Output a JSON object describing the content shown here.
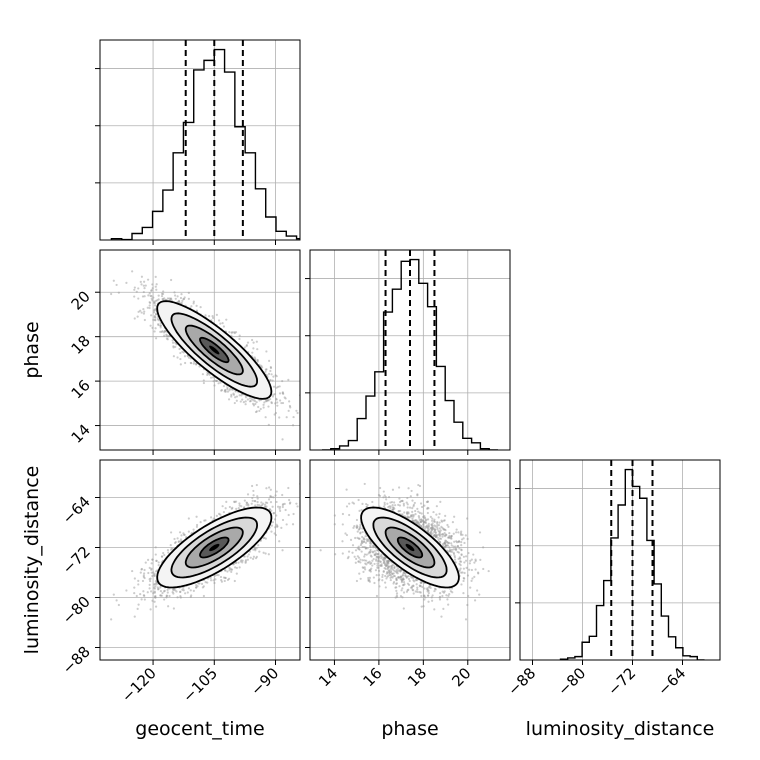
{
  "chart_data": {
    "type": "corner",
    "parameters": [
      {
        "name": "geocent_time",
        "label": "geocent_time",
        "range": [
          -133,
          -84
        ],
        "ticks": [
          -120,
          -105,
          -90
        ],
        "tick_labels": [
          "−120",
          "−105",
          "−90"
        ],
        "mean": -105,
        "sd": 7,
        "quantiles": [
          -112,
          -105,
          -98
        ]
      },
      {
        "name": "phase",
        "label": "phase",
        "range": [
          12.9,
          21.9
        ],
        "ticks": [
          14,
          16,
          18,
          20
        ],
        "tick_labels": [
          "14",
          "16",
          "18",
          "20"
        ],
        "mean": 17.4,
        "sd": 1.1,
        "quantiles": [
          16.3,
          17.4,
          18.5
        ]
      },
      {
        "name": "luminosity_distance",
        "label": "luminosity_distance",
        "range": [
          -90,
          -58
        ],
        "ticks": [
          -88,
          -80,
          -72,
          -64
        ],
        "tick_labels": [
          "−88",
          "−80",
          "−72",
          "−64"
        ],
        "mean": -72,
        "sd": 3.2,
        "quantiles": [
          -75.4,
          -72,
          -68.8
        ]
      }
    ],
    "correlations": {
      "0-1": -0.85,
      "0-2": 0.75,
      "1-2": -0.75
    },
    "histogram": {
      "bins": 20,
      "style": "step"
    },
    "quantiles_shown": [
      0.16,
      0.5,
      0.84
    ],
    "contour_levels": [
      0.5,
      1.0,
      1.5,
      2.0
    ],
    "grid": true,
    "samples": 3000
  }
}
